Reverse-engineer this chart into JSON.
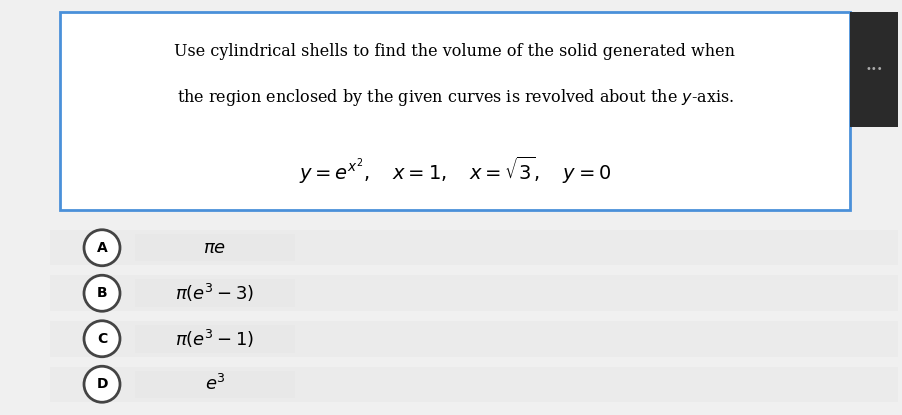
{
  "background_color": "#f0f0f0",
  "question_box_color": "#ffffff",
  "question_box_border": "#4a90d9",
  "question_text_line1": "Use cylindrical shells to find the volume of the solid generated when",
  "question_text_line2": "the region enclosed by the given curves is revolved about the $y$-axis.",
  "question_formula": "$y = e^{x^2}, \\quad x = 1, \\quad x = \\sqrt{3}, \\quad y = 0$",
  "options": [
    {
      "label": "A",
      "text": "$\\pi e$"
    },
    {
      "label": "B",
      "text": "$\\pi(e^3 - 3)$"
    },
    {
      "label": "C",
      "text": "$\\pi(e^3 - 1)$"
    },
    {
      "label": "D",
      "text": "$e^3$"
    }
  ],
  "option_bg_color": "#ebebeb",
  "option_text_bg_color": "#e8e8e8",
  "option_circle_color": "#ffffff",
  "option_circle_border": "#444444",
  "dots_bg_color": "#2a2a2a",
  "dots_color": "#aaaaaa"
}
